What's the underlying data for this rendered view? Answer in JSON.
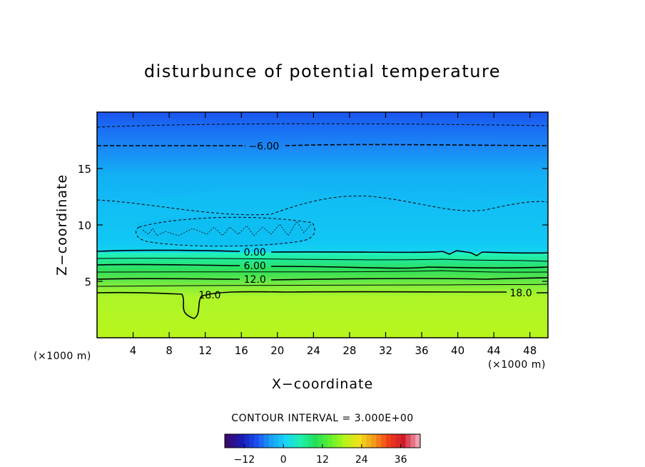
{
  "chart_data": {
    "type": "heatmap",
    "title": "disturbunce of potential temperature",
    "xlabel": "X−coordinate",
    "ylabel": "Z−coordinate",
    "x_unit": "(×1000 m)",
    "x_ticks": [
      4,
      8,
      12,
      16,
      20,
      24,
      28,
      32,
      36,
      40,
      44,
      48
    ],
    "y_ticks": [
      5,
      10,
      15
    ],
    "xlim": [
      0,
      50
    ],
    "ylim": [
      0,
      20
    ],
    "contour_interval_text": "CONTOUR INTERVAL = 3.000E+00",
    "contour_labels": [
      {
        "text": "−6.00",
        "x": 18.5,
        "z": 17.0
      },
      {
        "text": "0.00",
        "x": 17.5,
        "z": 7.6
      },
      {
        "text": "6.00",
        "x": 17.5,
        "z": 6.4
      },
      {
        "text": "12.0",
        "x": 17.5,
        "z": 5.2
      },
      {
        "text": "18.0",
        "x": 12.5,
        "z": 3.8
      },
      {
        "text": "18.0",
        "x": 47.0,
        "z": 4.0
      }
    ],
    "colorbar": {
      "range": [
        -18,
        42
      ],
      "ticks": [
        -12,
        0,
        12,
        24,
        36
      ],
      "colors": [
        "#3a0a6e",
        "#1a1ab5",
        "#1a50f0",
        "#1aa0f5",
        "#1ad6f5",
        "#1ef0b0",
        "#22e05a",
        "#60f030",
        "#b4f51a",
        "#f0e01a",
        "#f59a1a",
        "#f0401a",
        "#d01a2a",
        "#f0a0b0"
      ]
    }
  }
}
